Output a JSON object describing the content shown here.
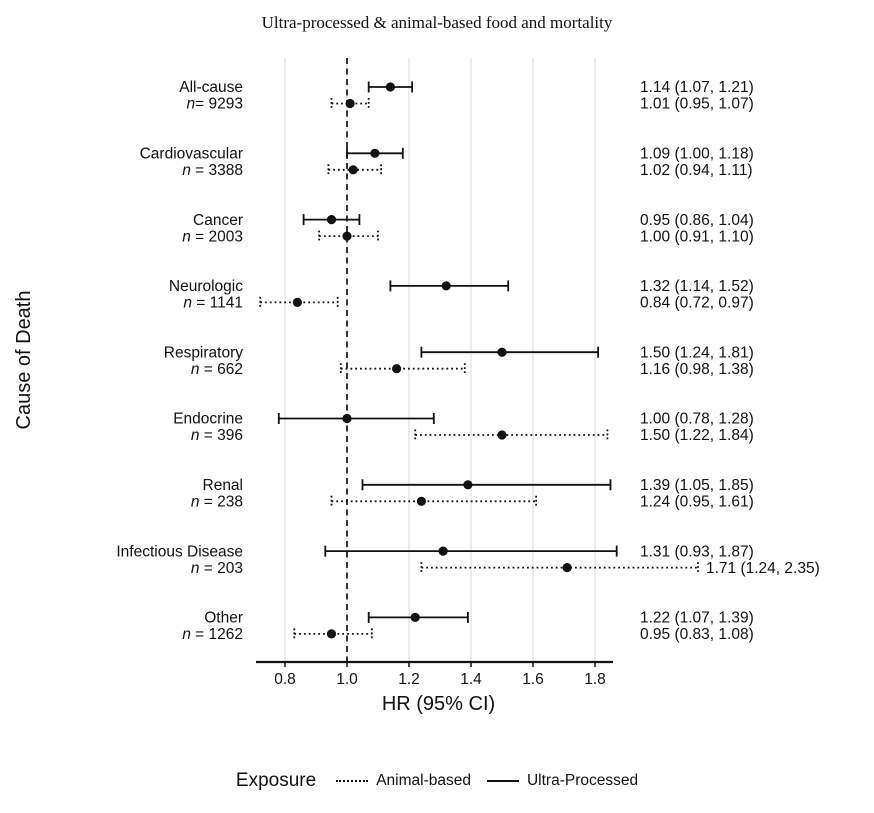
{
  "chart_data": {
    "type": "forest",
    "title": "Ultra-processed & animal-based food and mortality",
    "xlabel": "HR (95% CI)",
    "ylabel": "Cause of Death",
    "xlim": [
      0.72,
      1.9
    ],
    "xticks": [
      0.8,
      1.0,
      1.2,
      1.4,
      1.6,
      1.8
    ],
    "xtick_labels": [
      "0.8",
      "1.0",
      "1.2",
      "1.4",
      "1.6",
      "1.8"
    ],
    "reference_line": 1.0,
    "grid": "vertical-gridlines-at-ticks",
    "series": [
      "Ultra-Processed",
      "Animal-based"
    ],
    "groups": [
      {
        "label": "All-cause",
        "n_label": "n= 9293",
        "ultra_processed": {
          "hr": 1.14,
          "lo": 1.07,
          "hi": 1.21,
          "text": "1.14 (1.07, 1.21)"
        },
        "animal_based": {
          "hr": 1.01,
          "lo": 0.95,
          "hi": 1.07,
          "text": "1.01 (0.95, 1.07)"
        }
      },
      {
        "label": "Cardiovascular",
        "n_label": "n = 3388",
        "ultra_processed": {
          "hr": 1.09,
          "lo": 1.0,
          "hi": 1.18,
          "text": "1.09 (1.00, 1.18)"
        },
        "animal_based": {
          "hr": 1.02,
          "lo": 0.94,
          "hi": 1.11,
          "text": "1.02 (0.94, 1.11)"
        }
      },
      {
        "label": "Cancer",
        "n_label": "n = 2003",
        "ultra_processed": {
          "hr": 0.95,
          "lo": 0.86,
          "hi": 1.04,
          "text": "0.95 (0.86, 1.04)"
        },
        "animal_based": {
          "hr": 1.0,
          "lo": 0.91,
          "hi": 1.1,
          "text": "1.00 (0.91, 1.10)"
        }
      },
      {
        "label": "Neurologic",
        "n_label": "n = 1141",
        "ultra_processed": {
          "hr": 1.32,
          "lo": 1.14,
          "hi": 1.52,
          "text": "1.32 (1.14, 1.52)"
        },
        "animal_based": {
          "hr": 0.84,
          "lo": 0.72,
          "hi": 0.97,
          "text": "0.84 (0.72, 0.97)"
        }
      },
      {
        "label": "Respiratory",
        "n_label": "n = 662",
        "ultra_processed": {
          "hr": 1.5,
          "lo": 1.24,
          "hi": 1.81,
          "text": "1.50 (1.24, 1.81)"
        },
        "animal_based": {
          "hr": 1.16,
          "lo": 0.98,
          "hi": 1.38,
          "text": "1.16 (0.98, 1.38)"
        }
      },
      {
        "label": "Endocrine",
        "n_label": "n = 396",
        "ultra_processed": {
          "hr": 1.0,
          "lo": 0.78,
          "hi": 1.28,
          "text": "1.00 (0.78, 1.28)"
        },
        "animal_based": {
          "hr": 1.5,
          "lo": 1.22,
          "hi": 1.84,
          "text": "1.50 (1.22, 1.84)"
        }
      },
      {
        "label": "Renal",
        "n_label": "n = 238",
        "ultra_processed": {
          "hr": 1.39,
          "lo": 1.05,
          "hi": 1.85,
          "text": "1.39 (1.05, 1.85)"
        },
        "animal_based": {
          "hr": 1.24,
          "lo": 0.95,
          "hi": 1.61,
          "text": "1.24 (0.95, 1.61)"
        }
      },
      {
        "label": "Infectious Disease",
        "n_label": "n = 203",
        "ultra_processed": {
          "hr": 1.31,
          "lo": 0.93,
          "hi": 1.87,
          "text": "1.31 (0.93, 1.87)"
        },
        "animal_based": {
          "hr": 1.71,
          "lo": 1.24,
          "hi": 2.35,
          "text": "1.71 (1.24, 2.35)"
        }
      },
      {
        "label": "Other",
        "n_label": "n = 1262",
        "ultra_processed": {
          "hr": 1.22,
          "lo": 1.07,
          "hi": 1.39,
          "text": "1.22 (1.07, 1.39)"
        },
        "animal_based": {
          "hr": 0.95,
          "lo": 0.83,
          "hi": 1.08,
          "text": "0.95 (0.83, 1.08)"
        }
      }
    ],
    "legend": {
      "title": "Exposure",
      "items": [
        {
          "label": "Animal-based",
          "line_style": "dotted"
        },
        {
          "label": "Ultra-Processed",
          "line_style": "solid"
        }
      ]
    },
    "colors": {
      "foreground": "#111111",
      "gridline": "#d9d9d9",
      "background": "#ffffff"
    }
  }
}
